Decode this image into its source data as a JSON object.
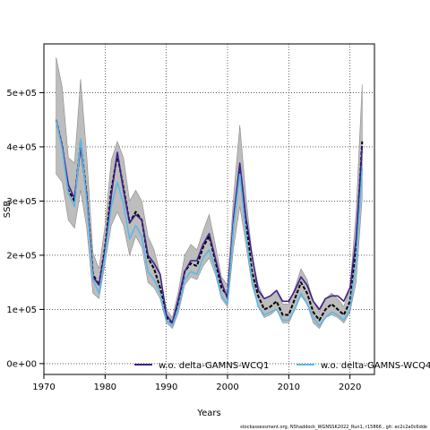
{
  "chart_data": {
    "type": "line",
    "xlabel": "Years",
    "ylabel": "SSB",
    "xlim": [
      1970,
      2024
    ],
    "ylim": [
      -20000,
      590000
    ],
    "grid": true,
    "grid_style": "dotted",
    "legend_placement": "bottom",
    "x_ticks": [
      1970,
      1980,
      1990,
      2000,
      2010,
      2020
    ],
    "y_ticks": [
      0,
      100000,
      200000,
      300000,
      400000,
      500000
    ],
    "y_tick_labels": [
      "0e+00",
      "1e+05",
      "2e+05",
      "3e+05",
      "4e+05",
      "5e+05"
    ],
    "x": [
      1972,
      1973,
      1974,
      1975,
      1976,
      1977,
      1978,
      1979,
      1980,
      1981,
      1982,
      1983,
      1984,
      1985,
      1986,
      1987,
      1988,
      1989,
      1990,
      1991,
      1992,
      1993,
      1994,
      1995,
      1996,
      1997,
      1998,
      1999,
      2000,
      2001,
      2002,
      2003,
      2004,
      2005,
      2006,
      2007,
      2008,
      2009,
      2010,
      2011,
      2012,
      2013,
      2014,
      2015,
      2016,
      2017,
      2018,
      2019,
      2020,
      2021,
      2022
    ],
    "series": [
      {
        "name": "",
        "color": "#000000",
        "dashed": true,
        "values": [
          450000,
          400000,
          320000,
          300000,
          410000,
          310000,
          165000,
          145000,
          215000,
          320000,
          385000,
          325000,
          260000,
          280000,
          265000,
          195000,
          175000,
          140000,
          85000,
          75000,
          115000,
          170000,
          185000,
          180000,
          215000,
          235000,
          190000,
          140000,
          125000,
          260000,
          360000,
          260000,
          170000,
          125000,
          100000,
          105000,
          115000,
          90000,
          90000,
          120000,
          150000,
          130000,
          95000,
          80000,
          100000,
          110000,
          100000,
          90000,
          115000,
          210000,
          410000
        ],
        "ci_lower": [
          350000,
          335000,
          265000,
          250000,
          320000,
          250000,
          130000,
          120000,
          185000,
          255000,
          280000,
          255000,
          200000,
          235000,
          215000,
          150000,
          140000,
          120000,
          75000,
          65000,
          95000,
          145000,
          160000,
          155000,
          180000,
          195000,
          165000,
          120000,
          105000,
          215000,
          290000,
          220000,
          145000,
          105000,
          85000,
          90000,
          100000,
          75000,
          75000,
          100000,
          125000,
          110000,
          75000,
          65000,
          85000,
          90000,
          85000,
          75000,
          95000,
          150000,
          305000
        ],
        "ci_upper": [
          565000,
          510000,
          380000,
          370000,
          525000,
          385000,
          205000,
          175000,
          255000,
          375000,
          410000,
          380000,
          300000,
          320000,
          300000,
          235000,
          210000,
          165000,
          100000,
          85000,
          135000,
          200000,
          220000,
          210000,
          245000,
          275000,
          220000,
          160000,
          145000,
          310000,
          440000,
          310000,
          200000,
          145000,
          120000,
          125000,
          135000,
          110000,
          110000,
          140000,
          175000,
          155000,
          115000,
          95000,
          120000,
          130000,
          120000,
          105000,
          140000,
          280000,
          515000
        ]
      },
      {
        "name": "w.o. delta-GAMNS-WCQ1",
        "color": "#3f1f8a",
        "dashed": false,
        "values": [
          450000,
          400000,
          330000,
          305000,
          400000,
          310000,
          160000,
          145000,
          210000,
          310000,
          390000,
          320000,
          260000,
          275000,
          265000,
          200000,
          185000,
          165000,
          90000,
          75000,
          120000,
          170000,
          190000,
          190000,
          220000,
          240000,
          195000,
          150000,
          120000,
          270000,
          370000,
          270000,
          200000,
          135000,
          120000,
          125000,
          135000,
          115000,
          115000,
          135000,
          160000,
          145000,
          115000,
          100000,
          120000,
          125000,
          125000,
          115000,
          140000,
          230000,
          400000
        ]
      },
      {
        "name": "w.o. delta-GAMNS-WCQ4",
        "color": "#5bb8e8",
        "dashed": false,
        "values": [
          450000,
          395000,
          315000,
          290000,
          415000,
          300000,
          155000,
          130000,
          200000,
          290000,
          335000,
          295000,
          230000,
          255000,
          235000,
          170000,
          155000,
          130000,
          80000,
          70000,
          105000,
          155000,
          170000,
          165000,
          195000,
          210000,
          175000,
          125000,
          110000,
          255000,
          350000,
          240000,
          155000,
          105000,
          90000,
          95000,
          100000,
          80000,
          80000,
          100000,
          130000,
          110000,
          85000,
          70000,
          85000,
          95000,
          90000,
          80000,
          100000,
          190000,
          360000
        ]
      }
    ]
  },
  "legend": {
    "item1": "w.o. delta-GAMNS-WCQ1",
    "item2": "w.o. delta-GAMNS-WCQ4"
  },
  "footer": "stockassessment.org, NShaddock_WGNSSK2022_Run1, r15866 , git: ec2c2a0c6dde"
}
